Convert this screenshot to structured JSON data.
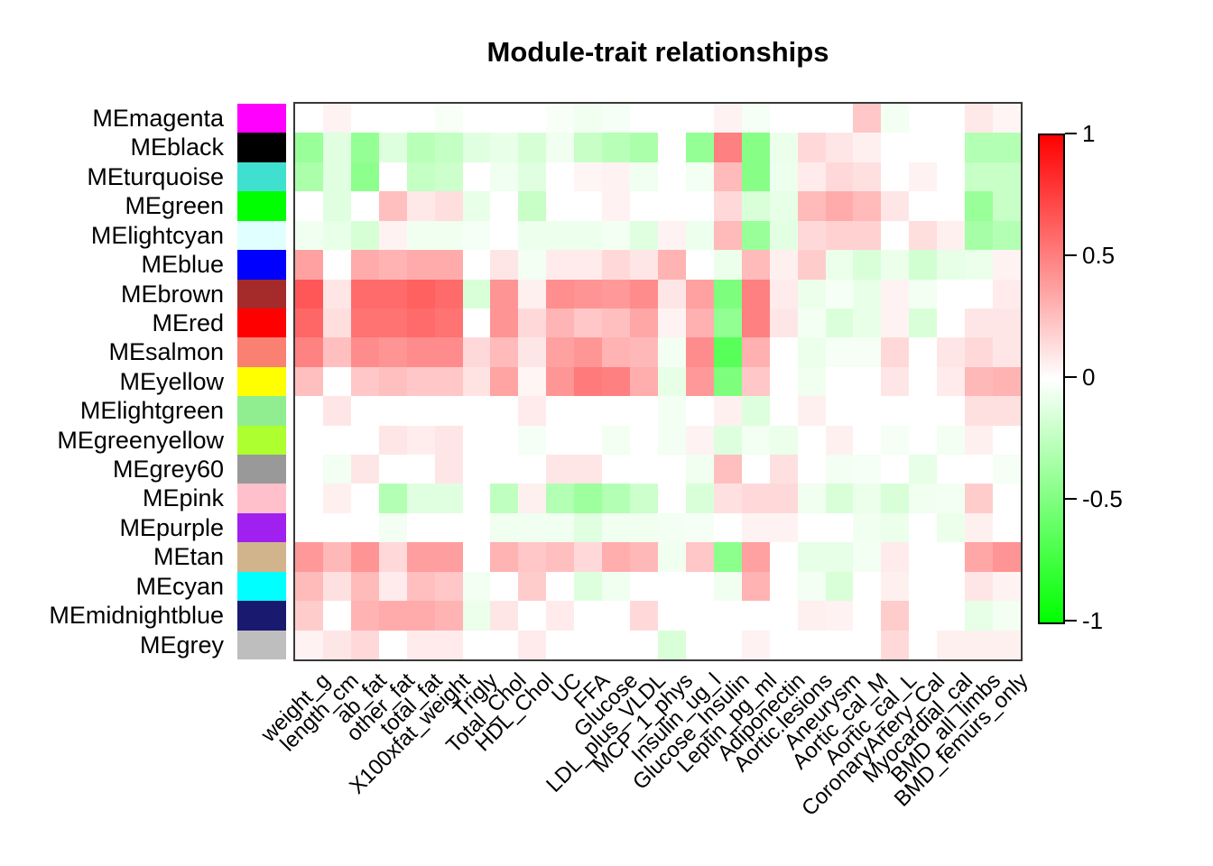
{
  "page": {
    "background": "#FFFFFF"
  },
  "chart_data": {
    "type": "heatmap",
    "title": "Module-trait relationships",
    "legend_position": "right",
    "value_range": [
      -1,
      1
    ],
    "color_scale": {
      "positive": "#FF0000",
      "zero": "#FFFFFF",
      "negative": "#00FF00"
    },
    "modules": [
      {
        "label": "MEmagenta",
        "color": "#FF00FF"
      },
      {
        "label": "MEblack",
        "color": "#000000"
      },
      {
        "label": "MEturquoise",
        "color": "#40E0D0"
      },
      {
        "label": "MEgreen",
        "color": "#00FF00"
      },
      {
        "label": "MElightcyan",
        "color": "#E0FFFF"
      },
      {
        "label": "MEblue",
        "color": "#0000FF"
      },
      {
        "label": "MEbrown",
        "color": "#A52A2A"
      },
      {
        "label": "MEred",
        "color": "#FF0000"
      },
      {
        "label": "MEsalmon",
        "color": "#FA8072"
      },
      {
        "label": "MEyellow",
        "color": "#FFFF00"
      },
      {
        "label": "MElightgreen",
        "color": "#90EE90"
      },
      {
        "label": "MEgreenyellow",
        "color": "#ADFF2F"
      },
      {
        "label": "MEgrey60",
        "color": "#999999"
      },
      {
        "label": "MEpink",
        "color": "#FFC0CB"
      },
      {
        "label": "MEpurple",
        "color": "#A020F0"
      },
      {
        "label": "MEtan",
        "color": "#D2B48C"
      },
      {
        "label": "MEcyan",
        "color": "#00FFFF"
      },
      {
        "label": "MEmidnightblue",
        "color": "#191970"
      },
      {
        "label": "MEgrey",
        "color": "#BEBEBE"
      }
    ],
    "traits": [
      "weight_g",
      "length_cm",
      "ab_fat",
      "other_fat",
      "total_fat",
      "X100xfat_weight",
      "Trigly",
      "Total_Chol",
      "HDL_Chol",
      "UC",
      "FFA",
      "Glucose",
      "LDL_plus_VLDL",
      "MCP_1_phys",
      "Insulin_ug_l",
      "Glucose_Insulin",
      "Leptin_pg_ml",
      "Adiponectin",
      "Aortic.lesions",
      "Aneurysm",
      "Aortic_cal_M",
      "Aortic_cal_L",
      "CoronaryArtery_Cal",
      "Myocardial_cal",
      "BMD_all_limbs",
      "BMD_femurs_only"
    ],
    "values": [
      [
        0,
        0.05,
        0,
        0,
        0,
        -0.03,
        0,
        0,
        0,
        -0.03,
        -0.06,
        -0.04,
        0,
        0,
        0,
        0.05,
        -0.04,
        0,
        0,
        0,
        0.22,
        -0.05,
        0,
        0,
        0.09,
        0.04
      ],
      [
        -0.4,
        -0.12,
        -0.42,
        -0.13,
        -0.28,
        -0.23,
        -0.12,
        -0.09,
        -0.16,
        -0.06,
        -0.22,
        -0.28,
        -0.33,
        0,
        -0.42,
        0.5,
        -0.47,
        -0.08,
        0.15,
        0.1,
        0.06,
        0,
        0,
        0,
        -0.3,
        -0.3
      ],
      [
        -0.33,
        -0.12,
        -0.45,
        0,
        -0.23,
        -0.2,
        0,
        -0.06,
        -0.12,
        0,
        0.04,
        0.05,
        -0.06,
        0,
        -0.05,
        0.27,
        -0.47,
        -0.07,
        0.08,
        0.15,
        0.12,
        0,
        0.05,
        0,
        -0.22,
        -0.22
      ],
      [
        0,
        -0.12,
        0,
        0.25,
        0.09,
        0.13,
        -0.09,
        0,
        -0.22,
        0,
        0,
        0.05,
        0,
        0,
        0,
        0.15,
        -0.15,
        -0.1,
        0.27,
        0.33,
        0.27,
        0.1,
        0,
        0,
        -0.4,
        -0.22
      ],
      [
        -0.06,
        -0.09,
        -0.16,
        0.05,
        -0.06,
        -0.06,
        -0.04,
        0,
        -0.07,
        -0.07,
        -0.07,
        -0.05,
        -0.12,
        0.05,
        -0.07,
        0.27,
        -0.4,
        -0.11,
        0.15,
        0.18,
        0.18,
        0,
        0.13,
        0.06,
        -0.35,
        -0.3
      ],
      [
        0.37,
        0,
        0.33,
        0.3,
        0.33,
        0.33,
        0,
        0.1,
        -0.05,
        0.08,
        0.08,
        0.15,
        0.1,
        0.3,
        0,
        -0.08,
        0.27,
        0.06,
        0.2,
        -0.08,
        -0.15,
        -0.08,
        -0.18,
        -0.1,
        -0.08,
        0.05
      ],
      [
        0.66,
        0.1,
        0.58,
        0.58,
        0.62,
        0.58,
        -0.15,
        0.42,
        0.06,
        0.44,
        0.42,
        0.4,
        0.45,
        0.1,
        0.37,
        -0.51,
        0.5,
        0.08,
        -0.08,
        -0.04,
        -0.09,
        0.05,
        -0.05,
        0,
        0,
        0.08
      ],
      [
        0.6,
        0.13,
        0.55,
        0.55,
        0.58,
        0.55,
        0,
        0.42,
        0.15,
        0.29,
        0.22,
        0.25,
        0.35,
        0.05,
        0.31,
        -0.43,
        0.5,
        0.1,
        -0.05,
        -0.14,
        -0.09,
        0.05,
        -0.15,
        0,
        0.1,
        0.1
      ],
      [
        0.49,
        0.25,
        0.45,
        0.42,
        0.45,
        0.45,
        0.15,
        0.27,
        0.1,
        0.37,
        0.41,
        0.3,
        0.28,
        -0.05,
        0.45,
        -0.65,
        0.31,
        0,
        -0.08,
        -0.04,
        -0.04,
        0.15,
        0,
        0.1,
        0.15,
        0.1
      ],
      [
        0.25,
        0,
        0.22,
        0.25,
        0.22,
        0.22,
        0.11,
        0.36,
        0.04,
        0.41,
        0.52,
        0.5,
        0.32,
        -0.1,
        0.4,
        -0.51,
        0.22,
        0,
        -0.06,
        0,
        0,
        0.1,
        0,
        0.08,
        0.28,
        0.3
      ],
      [
        0,
        0.1,
        0,
        0,
        0,
        0,
        0,
        0,
        0.08,
        0,
        0,
        0,
        0,
        -0.05,
        0,
        0.06,
        -0.13,
        0,
        0.06,
        0,
        0,
        0,
        0,
        0,
        0.12,
        0.12
      ],
      [
        0,
        0,
        0,
        0.1,
        0.07,
        0.1,
        0,
        0,
        -0.04,
        0,
        0,
        -0.05,
        0,
        -0.05,
        0.05,
        -0.13,
        -0.05,
        -0.08,
        0,
        0.06,
        0,
        -0.04,
        0,
        -0.05,
        0.06,
        0
      ],
      [
        0,
        -0.05,
        0.1,
        0,
        0,
        0.1,
        0,
        0,
        0,
        0.1,
        0.1,
        0,
        0,
        0,
        -0.06,
        0.25,
        0,
        0.12,
        0,
        -0.05,
        -0.04,
        0,
        -0.1,
        0,
        0,
        -0.04
      ],
      [
        0,
        0.06,
        0,
        -0.3,
        -0.12,
        -0.12,
        0,
        -0.25,
        0.06,
        -0.3,
        -0.38,
        -0.3,
        -0.2,
        0,
        -0.15,
        0.12,
        0.15,
        0.15,
        -0.06,
        -0.15,
        -0.08,
        -0.15,
        -0.06,
        -0.05,
        0.2,
        0
      ],
      [
        0,
        0,
        0,
        -0.05,
        0,
        0,
        0,
        -0.06,
        -0.06,
        -0.06,
        -0.12,
        -0.06,
        -0.06,
        -0.05,
        -0.04,
        0,
        0.05,
        0.05,
        0,
        0,
        -0.06,
        -0.08,
        0,
        -0.08,
        0.06,
        0
      ],
      [
        0.4,
        0.28,
        0.42,
        0.15,
        0.38,
        0.38,
        0,
        0.3,
        0.22,
        0.25,
        0.15,
        0.32,
        0.28,
        -0.06,
        0.22,
        -0.45,
        0.37,
        0,
        -0.1,
        -0.1,
        -0.05,
        0.08,
        0,
        0,
        0.35,
        0.42
      ],
      [
        0.27,
        0.12,
        0.27,
        0.08,
        0.25,
        0.22,
        -0.05,
        0,
        0.2,
        0,
        -0.13,
        -0.06,
        0,
        0,
        0,
        -0.06,
        0.3,
        0,
        -0.05,
        -0.15,
        0,
        0.06,
        0,
        0,
        0.1,
        0.05
      ],
      [
        0.2,
        0,
        0.3,
        0.33,
        0.33,
        0.3,
        -0.08,
        0.1,
        0,
        0.08,
        0,
        0,
        0.15,
        0,
        0,
        0,
        0,
        0,
        0.06,
        0.05,
        0,
        0.2,
        0,
        0,
        -0.1,
        -0.05
      ],
      [
        0.05,
        0.1,
        0.15,
        0,
        0.08,
        0.08,
        0,
        0,
        0.08,
        0,
        0,
        0,
        0,
        -0.15,
        0,
        0,
        0.05,
        0,
        0,
        0,
        0,
        0.15,
        0,
        0.06,
        0.06,
        0.06
      ]
    ],
    "colorbar": {
      "position": "right",
      "tick_labels": [
        "1",
        "0.5",
        "0",
        "-0.5",
        "-1"
      ],
      "tick_values": [
        1,
        0.5,
        0,
        -0.5,
        -1
      ]
    }
  }
}
